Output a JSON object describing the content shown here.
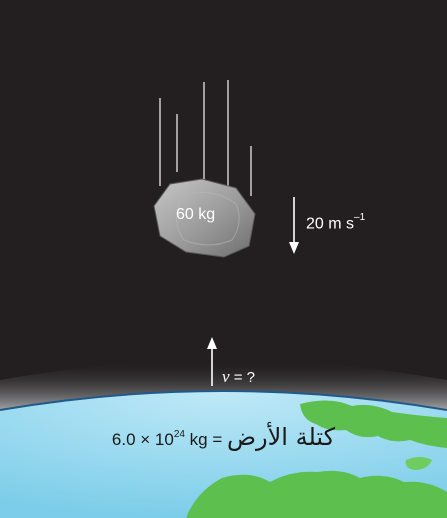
{
  "meteor": {
    "mass_label": "60 kg",
    "speed_value": "20 m s",
    "speed_exponent": "–1"
  },
  "earth": {
    "velocity_symbol": "v",
    "velocity_rest": " = ?",
    "mass_arabic": "كتلة الأرض",
    "mass_equals": " = ",
    "mass_number": "6.0 × 10",
    "mass_exponent": "24",
    "mass_unit": " kg"
  },
  "colors": {
    "space": "#231f20",
    "ocean": "#8fd6ee",
    "land": "#5cbf4e",
    "rock": "#9a9a9a",
    "horizon": "#1f5a8a"
  }
}
